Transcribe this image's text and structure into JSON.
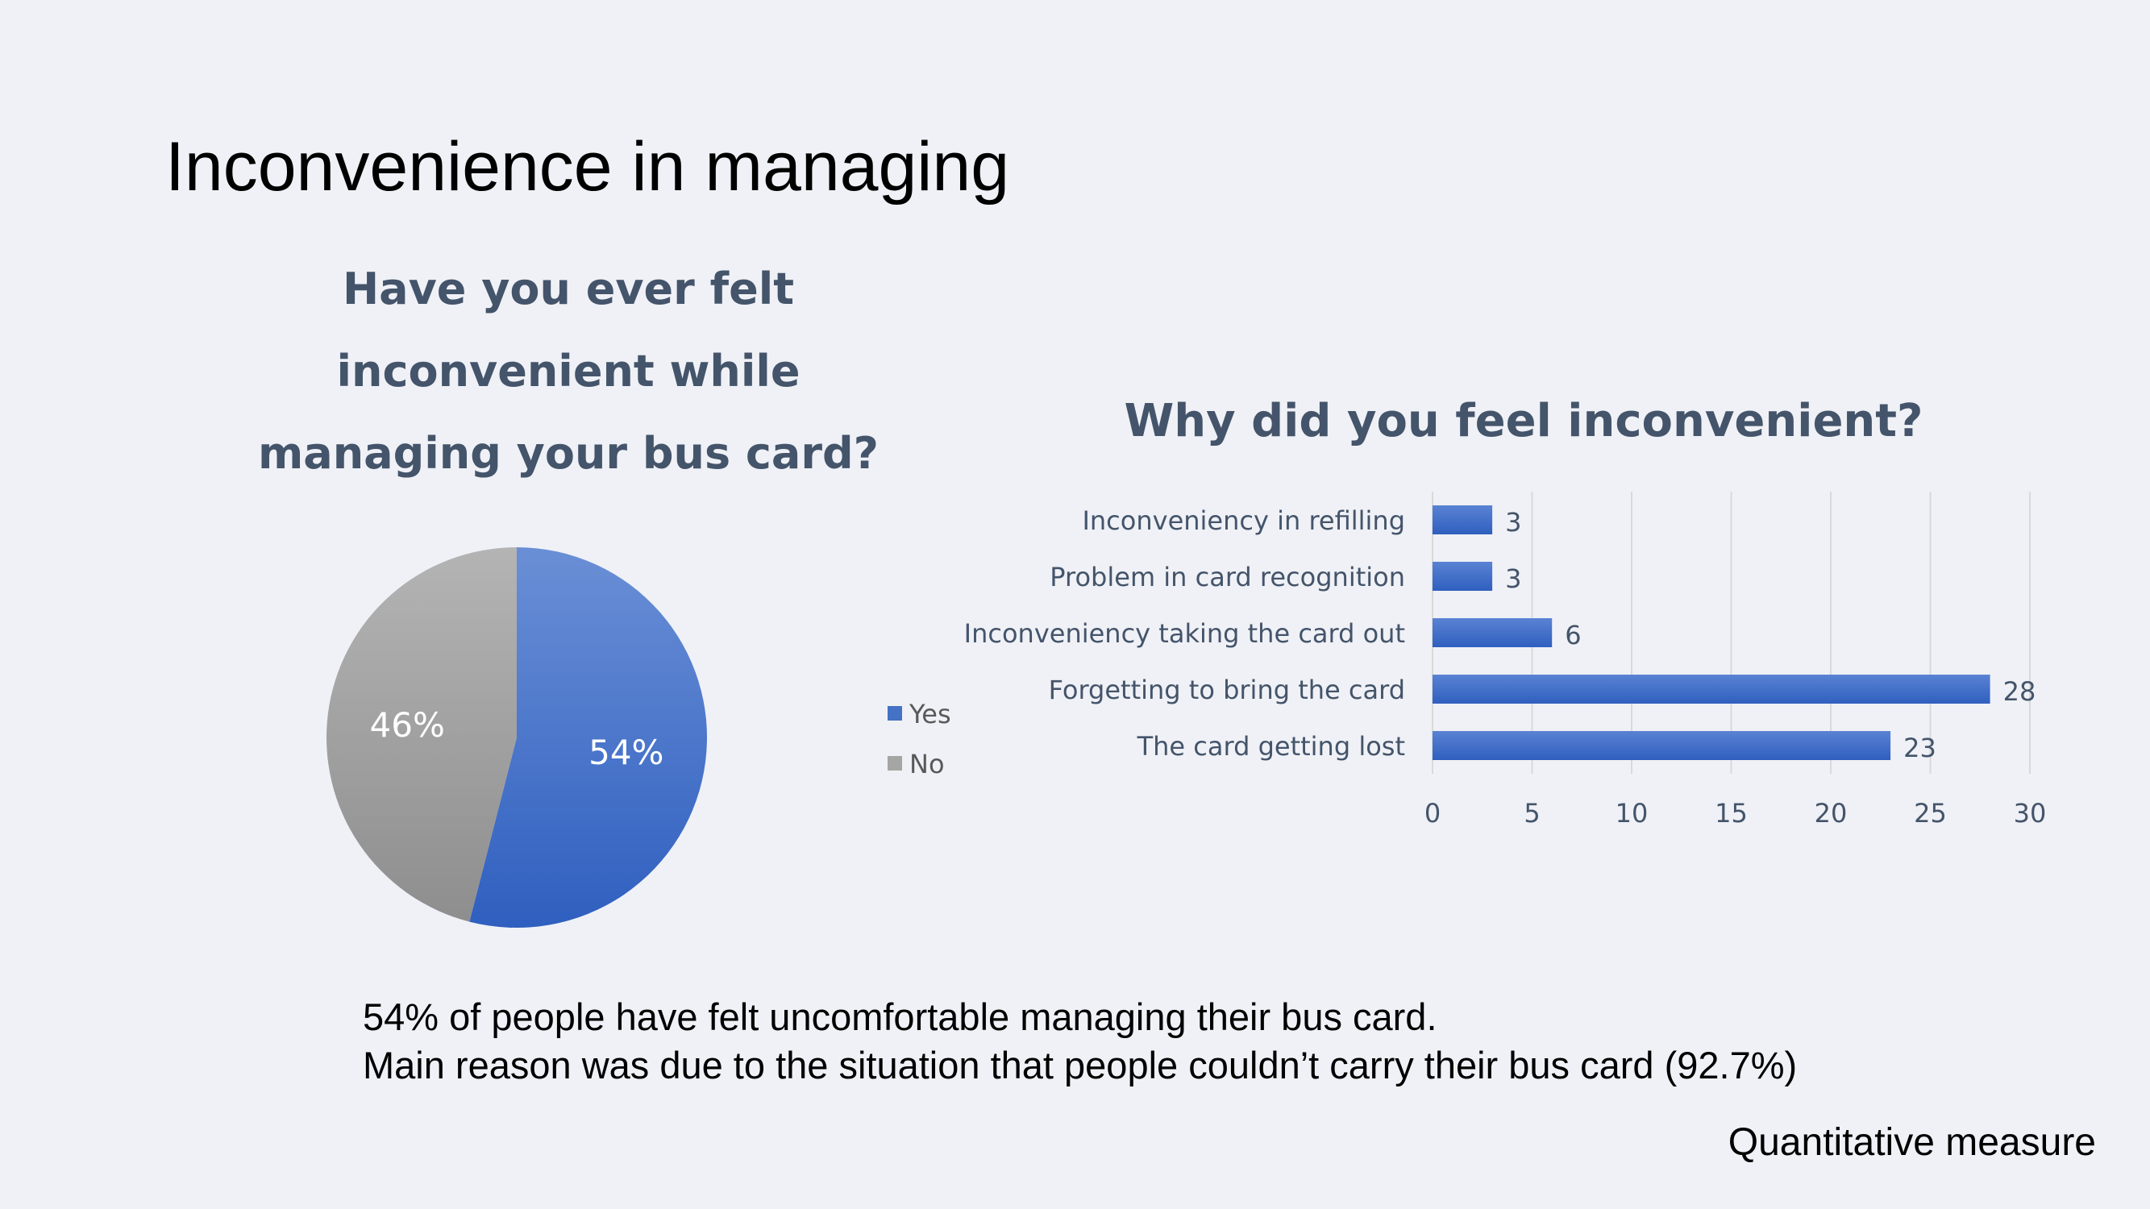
{
  "slide": {
    "title": "Inconvenience in managing",
    "footer": "Quantitative measure",
    "summary": [
      "54% of people have felt uncomfortable managing their bus card.",
      "Main reason was due to the situation that people couldn’t carry their bus card (92.7%)"
    ]
  },
  "chart_data": [
    {
      "type": "pie",
      "title_lines": [
        "Have you ever felt",
        "inconvenient while",
        "managing your bus card?"
      ],
      "labels": [
        "Yes",
        "No"
      ],
      "values": [
        54,
        46
      ],
      "data_labels": [
        "54%",
        "46%"
      ],
      "colors": [
        "#4472c4",
        "#a5a5a5"
      ],
      "legend_position": "right"
    },
    {
      "type": "bar",
      "orientation": "horizontal",
      "title": "Why did you feel inconvenient?",
      "categories": [
        "Inconveniency in refilling",
        "Problem in card recognition",
        "Inconveniency taking the card out",
        "Forgetting to bring the card",
        "The card getting lost"
      ],
      "values": [
        3,
        3,
        6,
        28,
        23
      ],
      "xlim": [
        0,
        30
      ],
      "xticks": [
        0,
        5,
        10,
        15,
        20,
        25,
        30
      ],
      "grid": true,
      "color": "#4472c4"
    }
  ]
}
